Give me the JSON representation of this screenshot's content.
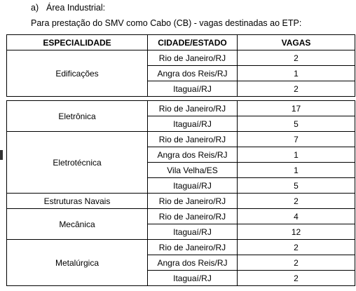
{
  "heading": {
    "marker": "a)",
    "text": "Área Industrial:"
  },
  "subheading": "Para prestação do SMV como Cabo (CB) - vagas destinadas ao ETP:",
  "table": {
    "headers": {
      "especialidade": "ESPECIALIDADE",
      "cidade": "CIDADE/ESTADO",
      "vagas": "VAGAS"
    },
    "groups": [
      {
        "especialidade": "Edificações",
        "rows": [
          {
            "cidade": "Rio de Janeiro/RJ",
            "vagas": "2"
          },
          {
            "cidade": "Angra dos Reis/RJ",
            "vagas": "1"
          },
          {
            "cidade": "Itaguaí/RJ",
            "vagas": "2"
          }
        ]
      },
      {
        "especialidade": "Eletrônica",
        "rows": [
          {
            "cidade": "Rio de Janeiro/RJ",
            "vagas": "17"
          },
          {
            "cidade": "Itaguaí/RJ",
            "vagas": "5"
          }
        ]
      },
      {
        "especialidade": "Eletrotécnica",
        "rows": [
          {
            "cidade": "Rio de Janeiro/RJ",
            "vagas": "7"
          },
          {
            "cidade": "Angra dos Reis/RJ",
            "vagas": "1"
          },
          {
            "cidade": "Vila Velha/ES",
            "vagas": "1"
          },
          {
            "cidade": "Itaguaí/RJ",
            "vagas": "5"
          }
        ]
      },
      {
        "especialidade": "Estruturas Navais",
        "rows": [
          {
            "cidade": "Rio de Janeiro/RJ",
            "vagas": "2"
          }
        ]
      },
      {
        "especialidade": "Mecânica",
        "rows": [
          {
            "cidade": "Rio de Janeiro/RJ",
            "vagas": "4"
          },
          {
            "cidade": "Itaguaí/RJ",
            "vagas": "12"
          }
        ]
      },
      {
        "especialidade": "Metalúrgica",
        "rows": [
          {
            "cidade": "Rio de Janeiro/RJ",
            "vagas": "2"
          },
          {
            "cidade": "Angra dos Reis/RJ",
            "vagas": "2"
          },
          {
            "cidade": "Itaguaí/RJ",
            "vagas": "2"
          }
        ]
      }
    ]
  }
}
